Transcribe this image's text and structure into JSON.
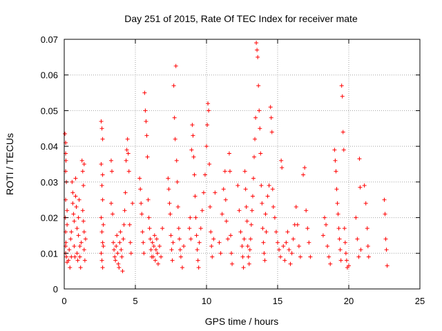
{
  "chart_data": {
    "type": "scatter",
    "title": "Day 251 of 2015, Rate Of TEC Index for receiver mate",
    "xlabel": "GPS time / hours",
    "ylabel": "ROTI / TECUs",
    "xlim": [
      0,
      25
    ],
    "ylim": [
      0,
      0.07
    ],
    "xticks": [
      0,
      5,
      10,
      15,
      20,
      25
    ],
    "xtick_labels": [
      "0",
      "5",
      "10",
      "15",
      "20",
      "25"
    ],
    "yticks": [
      0,
      0.01,
      0.02,
      0.03,
      0.04,
      0.05,
      0.06,
      0.07
    ],
    "ytick_labels": [
      "0",
      "0.01",
      "0.02",
      "0.03",
      "0.04",
      "0.05",
      "0.06",
      "0.07"
    ],
    "grid": true,
    "marker": "plus",
    "color": "#ff0000",
    "series": [
      {
        "points": [
          [
            0.05,
            0.0435
          ],
          [
            0.1,
            0.041
          ],
          [
            0.1,
            0.038
          ],
          [
            0.12,
            0.036
          ],
          [
            0.1,
            0.033
          ],
          [
            0.15,
            0.03
          ],
          [
            0.1,
            0.025
          ],
          [
            0.08,
            0.02
          ],
          [
            0.1,
            0.016
          ],
          [
            0.12,
            0.013
          ],
          [
            0.1,
            0.01
          ],
          [
            0.15,
            0.009
          ],
          [
            0.2,
            0.0075
          ],
          [
            0.1,
            0.012
          ],
          [
            0.2,
            0.018
          ],
          [
            0.2,
            0.022
          ],
          [
            0.3,
            0.008
          ],
          [
            0.35,
            0.011
          ],
          [
            0.4,
            0.006
          ],
          [
            0.45,
            0.014
          ],
          [
            0.5,
            0.009
          ],
          [
            0.5,
            0.016
          ],
          [
            0.55,
            0.03
          ],
          [
            0.6,
            0.027
          ],
          [
            0.6,
            0.024
          ],
          [
            0.65,
            0.021
          ],
          [
            0.7,
            0.019
          ],
          [
            0.7,
            0.012
          ],
          [
            0.75,
            0.009
          ],
          [
            0.8,
            0.031
          ],
          [
            0.8,
            0.026
          ],
          [
            0.85,
            0.023
          ],
          [
            0.9,
            0.017
          ],
          [
            0.9,
            0.01
          ],
          [
            0.95,
            0.008
          ],
          [
            1.0,
            0.015
          ],
          [
            1.0,
            0.02
          ],
          [
            1.05,
            0.025
          ],
          [
            1.1,
            0.012
          ],
          [
            1.1,
            0.009
          ],
          [
            1.15,
            0.006
          ],
          [
            1.2,
            0.013
          ],
          [
            1.25,
            0.036
          ],
          [
            1.3,
            0.033
          ],
          [
            1.35,
            0.029
          ],
          [
            1.3,
            0.022
          ],
          [
            1.35,
            0.019
          ],
          [
            1.4,
            0.016
          ],
          [
            1.4,
            0.011
          ],
          [
            1.45,
            0.008
          ],
          [
            1.5,
            0.014
          ],
          [
            1.4,
            0.035
          ],
          [
            2.6,
            0.047
          ],
          [
            2.65,
            0.045
          ],
          [
            2.7,
            0.042
          ],
          [
            2.6,
            0.035
          ],
          [
            2.7,
            0.032
          ],
          [
            2.65,
            0.029
          ],
          [
            2.7,
            0.025
          ],
          [
            2.6,
            0.02
          ],
          [
            2.65,
            0.016
          ],
          [
            2.7,
            0.013
          ],
          [
            2.6,
            0.01
          ],
          [
            2.65,
            0.008
          ],
          [
            2.7,
            0.006
          ],
          [
            2.75,
            0.012
          ],
          [
            2.75,
            0.018
          ],
          [
            3.3,
            0.036
          ],
          [
            3.35,
            0.033
          ],
          [
            3.3,
            0.024
          ],
          [
            3.4,
            0.021
          ],
          [
            3.45,
            0.013
          ],
          [
            3.5,
            0.011
          ],
          [
            3.55,
            0.009
          ],
          [
            3.6,
            0.008
          ],
          [
            3.65,
            0.012
          ],
          [
            3.7,
            0.015
          ],
          [
            3.75,
            0.01
          ],
          [
            3.8,
            0.007
          ],
          [
            3.85,
            0.006
          ],
          [
            3.9,
            0.013
          ],
          [
            3.95,
            0.016
          ],
          [
            4.0,
            0.011
          ],
          [
            4.05,
            0.009
          ],
          [
            4.1,
            0.005
          ],
          [
            4.15,
            0.014
          ],
          [
            4.2,
            0.018
          ],
          [
            4.25,
            0.022
          ],
          [
            4.3,
            0.027
          ],
          [
            4.35,
            0.036
          ],
          [
            4.4,
            0.039
          ],
          [
            4.45,
            0.042
          ],
          [
            4.5,
            0.038
          ],
          [
            4.55,
            0.033
          ],
          [
            4.6,
            0.018
          ],
          [
            4.65,
            0.013
          ],
          [
            4.7,
            0.01
          ],
          [
            4.8,
            0.024
          ],
          [
            5.3,
            0.031
          ],
          [
            5.35,
            0.028
          ],
          [
            5.4,
            0.024
          ],
          [
            5.45,
            0.021
          ],
          [
            5.5,
            0.016
          ],
          [
            5.55,
            0.013
          ],
          [
            5.6,
            0.01
          ],
          [
            5.65,
            0.055
          ],
          [
            5.7,
            0.05
          ],
          [
            5.75,
            0.047
          ],
          [
            5.8,
            0.043
          ],
          [
            5.85,
            0.037
          ],
          [
            5.9,
            0.025
          ],
          [
            5.95,
            0.02
          ],
          [
            6.0,
            0.017
          ],
          [
            6.05,
            0.014
          ],
          [
            6.1,
            0.011
          ],
          [
            6.15,
            0.009
          ],
          [
            6.2,
            0.013
          ],
          [
            6.25,
            0.009
          ],
          [
            6.3,
            0.012
          ],
          [
            6.35,
            0.015
          ],
          [
            6.4,
            0.008
          ],
          [
            6.45,
            0.011
          ],
          [
            6.5,
            0.014
          ],
          [
            6.55,
            0.01
          ],
          [
            6.6,
            0.007
          ],
          [
            6.7,
            0.012
          ],
          [
            6.8,
            0.009
          ],
          [
            6.9,
            0.017
          ],
          [
            7.3,
            0.031
          ],
          [
            7.35,
            0.028
          ],
          [
            7.4,
            0.024
          ],
          [
            7.45,
            0.021
          ],
          [
            7.5,
            0.015
          ],
          [
            7.55,
            0.011
          ],
          [
            7.6,
            0.008
          ],
          [
            7.65,
            0.013
          ],
          [
            7.7,
            0.057
          ],
          [
            7.75,
            0.048
          ],
          [
            7.8,
            0.042
          ],
          [
            7.85,
            0.0625
          ],
          [
            7.9,
            0.036
          ],
          [
            7.95,
            0.03
          ],
          [
            8.0,
            0.023
          ],
          [
            8.05,
            0.017
          ],
          [
            8.1,
            0.014
          ],
          [
            8.15,
            0.011
          ],
          [
            8.2,
            0.009
          ],
          [
            8.3,
            0.006
          ],
          [
            8.4,
            0.012
          ],
          [
            8.8,
            0.017
          ],
          [
            8.85,
            0.02
          ],
          [
            8.9,
            0.014
          ],
          [
            8.95,
            0.039
          ],
          [
            9.0,
            0.046
          ],
          [
            9.05,
            0.043
          ],
          [
            9.1,
            0.037
          ],
          [
            9.15,
            0.032
          ],
          [
            9.2,
            0.026
          ],
          [
            9.25,
            0.02
          ],
          [
            9.3,
            0.015
          ],
          [
            9.35,
            0.011
          ],
          [
            9.4,
            0.008
          ],
          [
            9.45,
            0.006
          ],
          [
            9.5,
            0.013
          ],
          [
            9.6,
            0.017
          ],
          [
            9.7,
            0.022
          ],
          [
            9.8,
            0.027
          ],
          [
            9.9,
            0.032
          ],
          [
            10.0,
            0.04
          ],
          [
            10.05,
            0.046
          ],
          [
            10.1,
            0.052
          ],
          [
            10.15,
            0.05
          ],
          [
            10.2,
            0.035
          ],
          [
            10.25,
            0.023
          ],
          [
            10.3,
            0.016
          ],
          [
            10.35,
            0.012
          ],
          [
            10.4,
            0.009
          ],
          [
            10.5,
            0.014
          ],
          [
            10.6,
            0.027
          ],
          [
            10.9,
            0.013
          ],
          [
            11.0,
            0.01
          ],
          [
            11.1,
            0.021
          ],
          [
            11.2,
            0.028
          ],
          [
            11.3,
            0.033
          ],
          [
            11.35,
            0.025
          ],
          [
            11.4,
            0.019
          ],
          [
            11.5,
            0.014
          ],
          [
            11.6,
            0.038
          ],
          [
            11.65,
            0.033
          ],
          [
            11.7,
            0.015
          ],
          [
            11.75,
            0.01
          ],
          [
            11.8,
            0.007
          ],
          [
            12.2,
            0.029
          ],
          [
            12.3,
            0.022
          ],
          [
            12.4,
            0.016
          ],
          [
            12.5,
            0.012
          ],
          [
            12.55,
            0.009
          ],
          [
            12.6,
            0.006
          ],
          [
            12.65,
            0.014
          ],
          [
            12.7,
            0.033
          ],
          [
            12.75,
            0.028
          ],
          [
            12.8,
            0.023
          ],
          [
            12.85,
            0.019
          ],
          [
            12.9,
            0.012
          ],
          [
            12.95,
            0.009
          ],
          [
            13.0,
            0.007
          ],
          [
            13.05,
            0.011
          ],
          [
            13.1,
            0.014
          ],
          [
            13.15,
            0.018
          ],
          [
            13.2,
            0.022
          ],
          [
            13.25,
            0.026
          ],
          [
            13.3,
            0.031
          ],
          [
            13.35,
            0.037
          ],
          [
            13.4,
            0.042
          ],
          [
            13.45,
            0.048
          ],
          [
            13.5,
            0.069
          ],
          [
            13.55,
            0.067
          ],
          [
            13.6,
            0.065
          ],
          [
            13.65,
            0.057
          ],
          [
            13.7,
            0.05
          ],
          [
            13.75,
            0.045
          ],
          [
            13.8,
            0.038
          ],
          [
            13.85,
            0.029
          ],
          [
            13.9,
            0.024
          ],
          [
            13.95,
            0.017
          ],
          [
            14.0,
            0.013
          ],
          [
            14.05,
            0.01
          ],
          [
            14.1,
            0.008
          ],
          [
            14.15,
            0.021
          ],
          [
            14.2,
            0.016
          ],
          [
            14.3,
            0.026
          ],
          [
            14.4,
            0.029
          ],
          [
            14.5,
            0.051
          ],
          [
            14.55,
            0.048
          ],
          [
            14.6,
            0.044
          ],
          [
            14.65,
            0.028
          ],
          [
            14.7,
            0.023
          ],
          [
            14.8,
            0.02
          ],
          [
            14.9,
            0.016
          ],
          [
            15.0,
            0.013
          ],
          [
            15.1,
            0.011
          ],
          [
            15.2,
            0.009
          ],
          [
            15.25,
            0.036
          ],
          [
            15.3,
            0.034
          ],
          [
            15.4,
            0.012
          ],
          [
            15.5,
            0.008
          ],
          [
            15.6,
            0.013
          ],
          [
            15.7,
            0.016
          ],
          [
            15.8,
            0.011
          ],
          [
            15.9,
            0.007
          ],
          [
            16.0,
            0.01
          ],
          [
            16.1,
            0.014
          ],
          [
            16.2,
            0.018
          ],
          [
            16.3,
            0.023
          ],
          [
            16.4,
            0.018
          ],
          [
            16.5,
            0.012
          ],
          [
            16.6,
            0.009
          ],
          [
            16.8,
            0.032
          ],
          [
            16.9,
            0.034
          ],
          [
            17.0,
            0.022
          ],
          [
            17.1,
            0.017
          ],
          [
            17.2,
            0.013
          ],
          [
            17.3,
            0.009
          ],
          [
            18.2,
            0.015
          ],
          [
            18.3,
            0.02
          ],
          [
            18.4,
            0.018
          ],
          [
            18.5,
            0.012
          ],
          [
            18.6,
            0.009
          ],
          [
            18.7,
            0.007
          ],
          [
            19.0,
            0.039
          ],
          [
            19.05,
            0.036
          ],
          [
            19.1,
            0.033
          ],
          [
            19.15,
            0.028
          ],
          [
            19.2,
            0.024
          ],
          [
            19.25,
            0.021
          ],
          [
            19.3,
            0.017
          ],
          [
            19.35,
            0.014
          ],
          [
            19.4,
            0.011
          ],
          [
            19.45,
            0.008
          ],
          [
            19.5,
            0.057
          ],
          [
            19.55,
            0.054
          ],
          [
            19.6,
            0.044
          ],
          [
            19.65,
            0.039
          ],
          [
            19.7,
            0.017
          ],
          [
            19.75,
            0.013
          ],
          [
            19.8,
            0.01
          ],
          [
            19.85,
            0.008
          ],
          [
            19.9,
            0.006
          ],
          [
            20.0,
            0.0065
          ],
          [
            20.5,
            0.02
          ],
          [
            20.6,
            0.014
          ],
          [
            20.7,
            0.009
          ],
          [
            20.75,
            0.0365
          ],
          [
            20.8,
            0.0285
          ],
          [
            20.85,
            0.011
          ],
          [
            21.1,
            0.029
          ],
          [
            21.2,
            0.024
          ],
          [
            21.3,
            0.017
          ],
          [
            21.35,
            0.012
          ],
          [
            21.4,
            0.009
          ],
          [
            22.5,
            0.025
          ],
          [
            22.55,
            0.021
          ],
          [
            22.6,
            0.014
          ],
          [
            22.65,
            0.011
          ],
          [
            22.7,
            0.0065
          ]
        ]
      }
    ]
  }
}
